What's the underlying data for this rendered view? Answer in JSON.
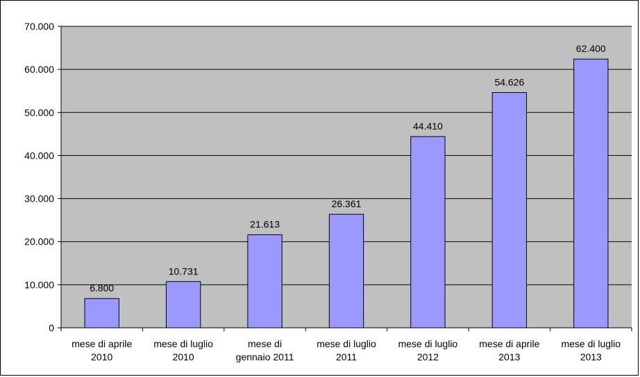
{
  "chart_data": {
    "type": "bar",
    "categories": [
      [
        "mese di aprile",
        "2010"
      ],
      [
        "mese di luglio",
        "2010"
      ],
      [
        "mese di",
        "gennaio 2011"
      ],
      [
        "mese di luglio",
        "2011"
      ],
      [
        "mese di luglio",
        "2012"
      ],
      [
        "mese di aprile",
        "2013"
      ],
      [
        "mese di luglio",
        "2013"
      ]
    ],
    "values": [
      6800,
      10731,
      21613,
      26361,
      44410,
      54626,
      62400
    ],
    "data_labels": [
      "6.800",
      "10.731",
      "21.613",
      "26.361",
      "44.410",
      "54.626",
      "62.400"
    ],
    "ylim": [
      0,
      70000
    ],
    "yticks": [
      0,
      10000,
      20000,
      30000,
      40000,
      50000,
      60000,
      70000
    ],
    "ytick_labels": [
      "0",
      "10.000",
      "20.000",
      "30.000",
      "40.000",
      "50.000",
      "60.000",
      "70.000"
    ],
    "grid": true,
    "legend": "none",
    "colors": {
      "plot_background": "#c0c0c0",
      "bar_fill": "#9999ff",
      "bar_stroke": "#000000",
      "grid": "#000000"
    }
  }
}
